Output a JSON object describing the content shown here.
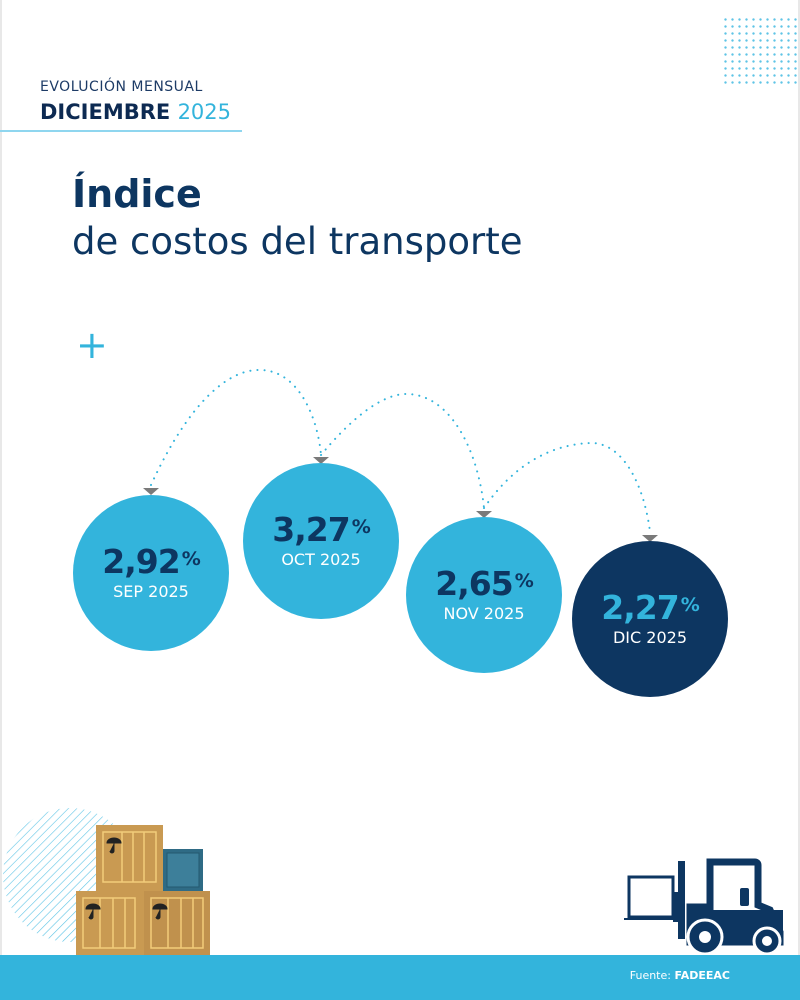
{
  "header": {
    "kicker": "EVOLUCIÓN MENSUAL",
    "month": "DICIEMBRE",
    "year": "2025"
  },
  "title": {
    "line1": "Índice",
    "line2": "de costos del transporte"
  },
  "items": [
    {
      "value": "2,92",
      "unit": "%",
      "label": "SEP 2025"
    },
    {
      "value": "3,27",
      "unit": "%",
      "label": "OCT 2025"
    },
    {
      "value": "2,65",
      "unit": "%",
      "label": "NOV 2025"
    },
    {
      "value": "2,27",
      "unit": "%",
      "label": "DIC 2025"
    }
  ],
  "footer": {
    "source_label": "Fuente:",
    "source": "FADEEAC"
  },
  "colors": {
    "navy": "#0d3661",
    "light_blue": "#33b4dc",
    "crate": "#c99a52",
    "arrow": "#7a7a7a"
  },
  "icons": [
    "plus-icon",
    "dot-grid",
    "crates-illustration",
    "forklift-illustration"
  ]
}
